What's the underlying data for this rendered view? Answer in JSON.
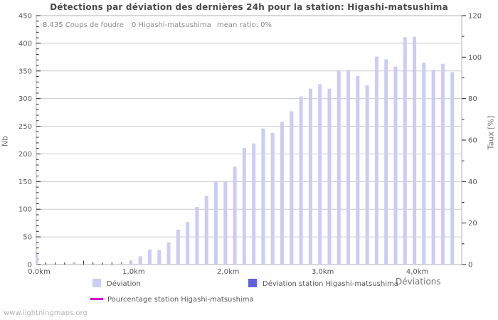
{
  "stats": {
    "strokes": "8.435  Coups de foudre",
    "station": "0 Higashi-matsushima",
    "ratio": "mean ratio: 0%"
  },
  "watermark": "www.lightningmaps.org",
  "colors": {
    "bar_light": "#ccccf4",
    "bar_station": "#6161e0",
    "line_percent": "#cc00cc",
    "grid": "#cccccc",
    "plot_border": "#b0b0b0",
    "tick": "#222222",
    "tick_text": "#595959"
  },
  "legend": {
    "items": [
      {
        "label": "Déviation",
        "swatch": "#ccccf4",
        "kind": "square"
      },
      {
        "label": "Déviation station Higashi-matsushima",
        "swatch": "#6161e0",
        "kind": "square"
      },
      {
        "label": "Pourcentage station Higashi-matsushima",
        "swatch": "#cc00cc",
        "kind": "line"
      }
    ]
  },
  "chart_data": {
    "type": "bar",
    "title": "Détections par déviation des dernières 24h pour la station: Higashi-matsushima",
    "x_axis": {
      "label": "Déviations",
      "range_km": [
        0,
        4.5
      ],
      "major_tick_km": [
        0,
        1,
        2,
        3,
        4
      ],
      "tick_labels": [
        "0,0km",
        "1,0km",
        "2,0km",
        "3,0km",
        "4,0km"
      ],
      "minor_step_km": 0.1
    },
    "y_left": {
      "label": "Nb",
      "min": 0,
      "max": 450,
      "major_step": 50,
      "minor_step": 10,
      "tick_labels": [
        "0",
        "50",
        "100",
        "150",
        "200",
        "250",
        "300",
        "350",
        "400",
        "450"
      ]
    },
    "y_right": {
      "label": "Taux [%]",
      "min": 0,
      "max": 120,
      "major_step": 20,
      "minor_step": 10,
      "tick_labels": [
        "0",
        "20",
        "40",
        "60",
        "80",
        "100",
        "120"
      ]
    },
    "categories_km": [
      0.0,
      0.1,
      0.2,
      0.3,
      0.4,
      0.5,
      0.6,
      0.7,
      0.8,
      0.9,
      1.0,
      1.1,
      1.2,
      1.3,
      1.4,
      1.5,
      1.6,
      1.7,
      1.8,
      1.9,
      2.0,
      2.1,
      2.2,
      2.3,
      2.4,
      2.5,
      2.6,
      2.7,
      2.8,
      2.9,
      3.0,
      3.1,
      3.2,
      3.3,
      3.4,
      3.5,
      3.6,
      3.7,
      3.8,
      3.9,
      4.0,
      4.1,
      4.2,
      4.3,
      4.4
    ],
    "series": [
      {
        "name": "Déviation",
        "axis": "left",
        "kind": "bar",
        "color": "#ccccf4",
        "values": [
          20,
          0,
          0,
          0,
          3,
          0,
          0,
          0,
          0,
          2,
          6,
          15,
          27,
          26,
          40,
          63,
          77,
          104,
          124,
          151,
          150,
          177,
          211,
          219,
          246,
          238,
          258,
          277,
          304,
          318,
          326,
          318,
          351,
          352,
          341,
          324,
          376,
          371,
          358,
          411,
          412,
          365,
          352,
          363,
          348
        ]
      },
      {
        "name": "Déviation station Higashi-matsushima",
        "axis": "left",
        "kind": "bar",
        "color": "#6161e0",
        "values": [
          0,
          0,
          0,
          0,
          0,
          0,
          0,
          0,
          0,
          0,
          0,
          0,
          0,
          0,
          0,
          0,
          0,
          0,
          0,
          0,
          0,
          0,
          0,
          0,
          0,
          0,
          0,
          0,
          0,
          0,
          0,
          0,
          0,
          0,
          0,
          0,
          0,
          0,
          0,
          0,
          0,
          0,
          0,
          0,
          0
        ]
      },
      {
        "name": "Pourcentage station Higashi-matsushima",
        "axis": "right",
        "kind": "line",
        "color": "#cc00cc",
        "values": [
          0,
          0,
          0,
          0,
          0,
          0,
          0,
          0,
          0,
          0,
          0,
          0,
          0,
          0,
          0,
          0,
          0,
          0,
          0,
          0,
          0,
          0,
          0,
          0,
          0,
          0,
          0,
          0,
          0,
          0,
          0,
          0,
          0,
          0,
          0,
          0,
          0,
          0,
          0,
          0,
          0,
          0,
          0,
          0,
          0
        ]
      }
    ],
    "legend_position": "bottom",
    "grid": true
  }
}
